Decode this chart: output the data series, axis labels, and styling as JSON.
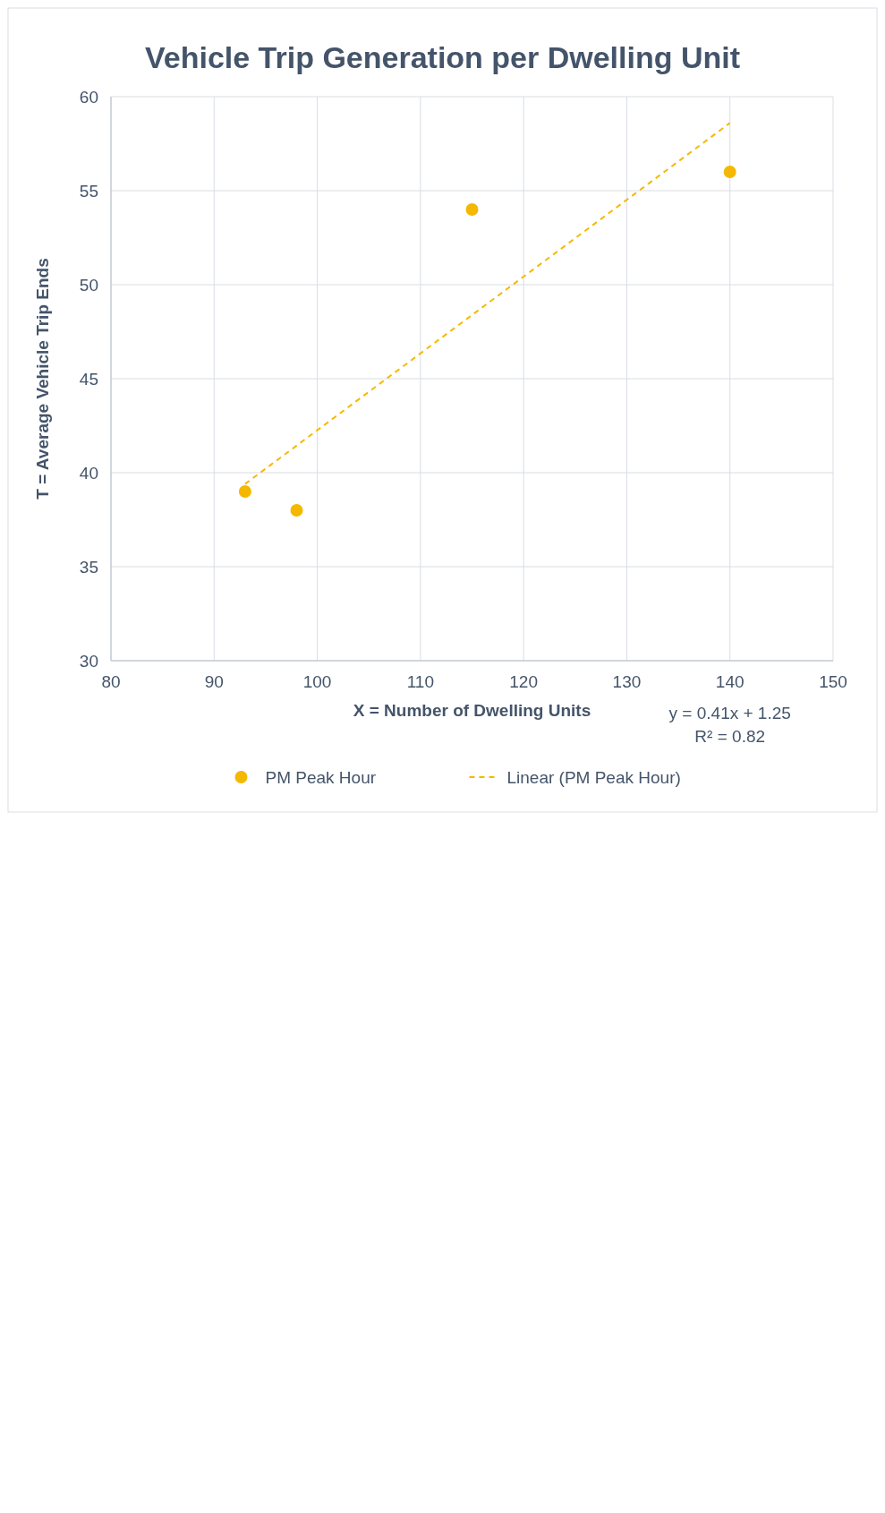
{
  "chart_data": {
    "type": "scatter",
    "title": "Vehicle Trip Generation per Dwelling Unit",
    "xlabel": "X = Number of Dwelling Units",
    "ylabel": "T = Average Vehicle Trip Ends",
    "xlim": [
      80,
      150
    ],
    "xticks": [
      80,
      90,
      100,
      110,
      120,
      130,
      140,
      150
    ],
    "ylim": [
      30,
      60
    ],
    "yticks": [
      30,
      35,
      40,
      45,
      50,
      55,
      60
    ],
    "grid": true,
    "legend": "bottom",
    "series": [
      {
        "name": "PM Peak Hour",
        "color": "#f5b800",
        "marker": "circle",
        "x": [
          93,
          98,
          115,
          140
        ],
        "values": [
          39,
          38,
          54,
          56
        ]
      },
      {
        "name": "Linear (PM Peak Hour)",
        "type": "line",
        "color": "#f5b800",
        "line_style": "dashed",
        "marker": "none",
        "x": [
          93,
          140
        ],
        "values": [
          39.4,
          58.6
        ]
      }
    ],
    "annotations": [
      "y = 0.41x + 1.25",
      "R² = 0.82"
    ]
  }
}
